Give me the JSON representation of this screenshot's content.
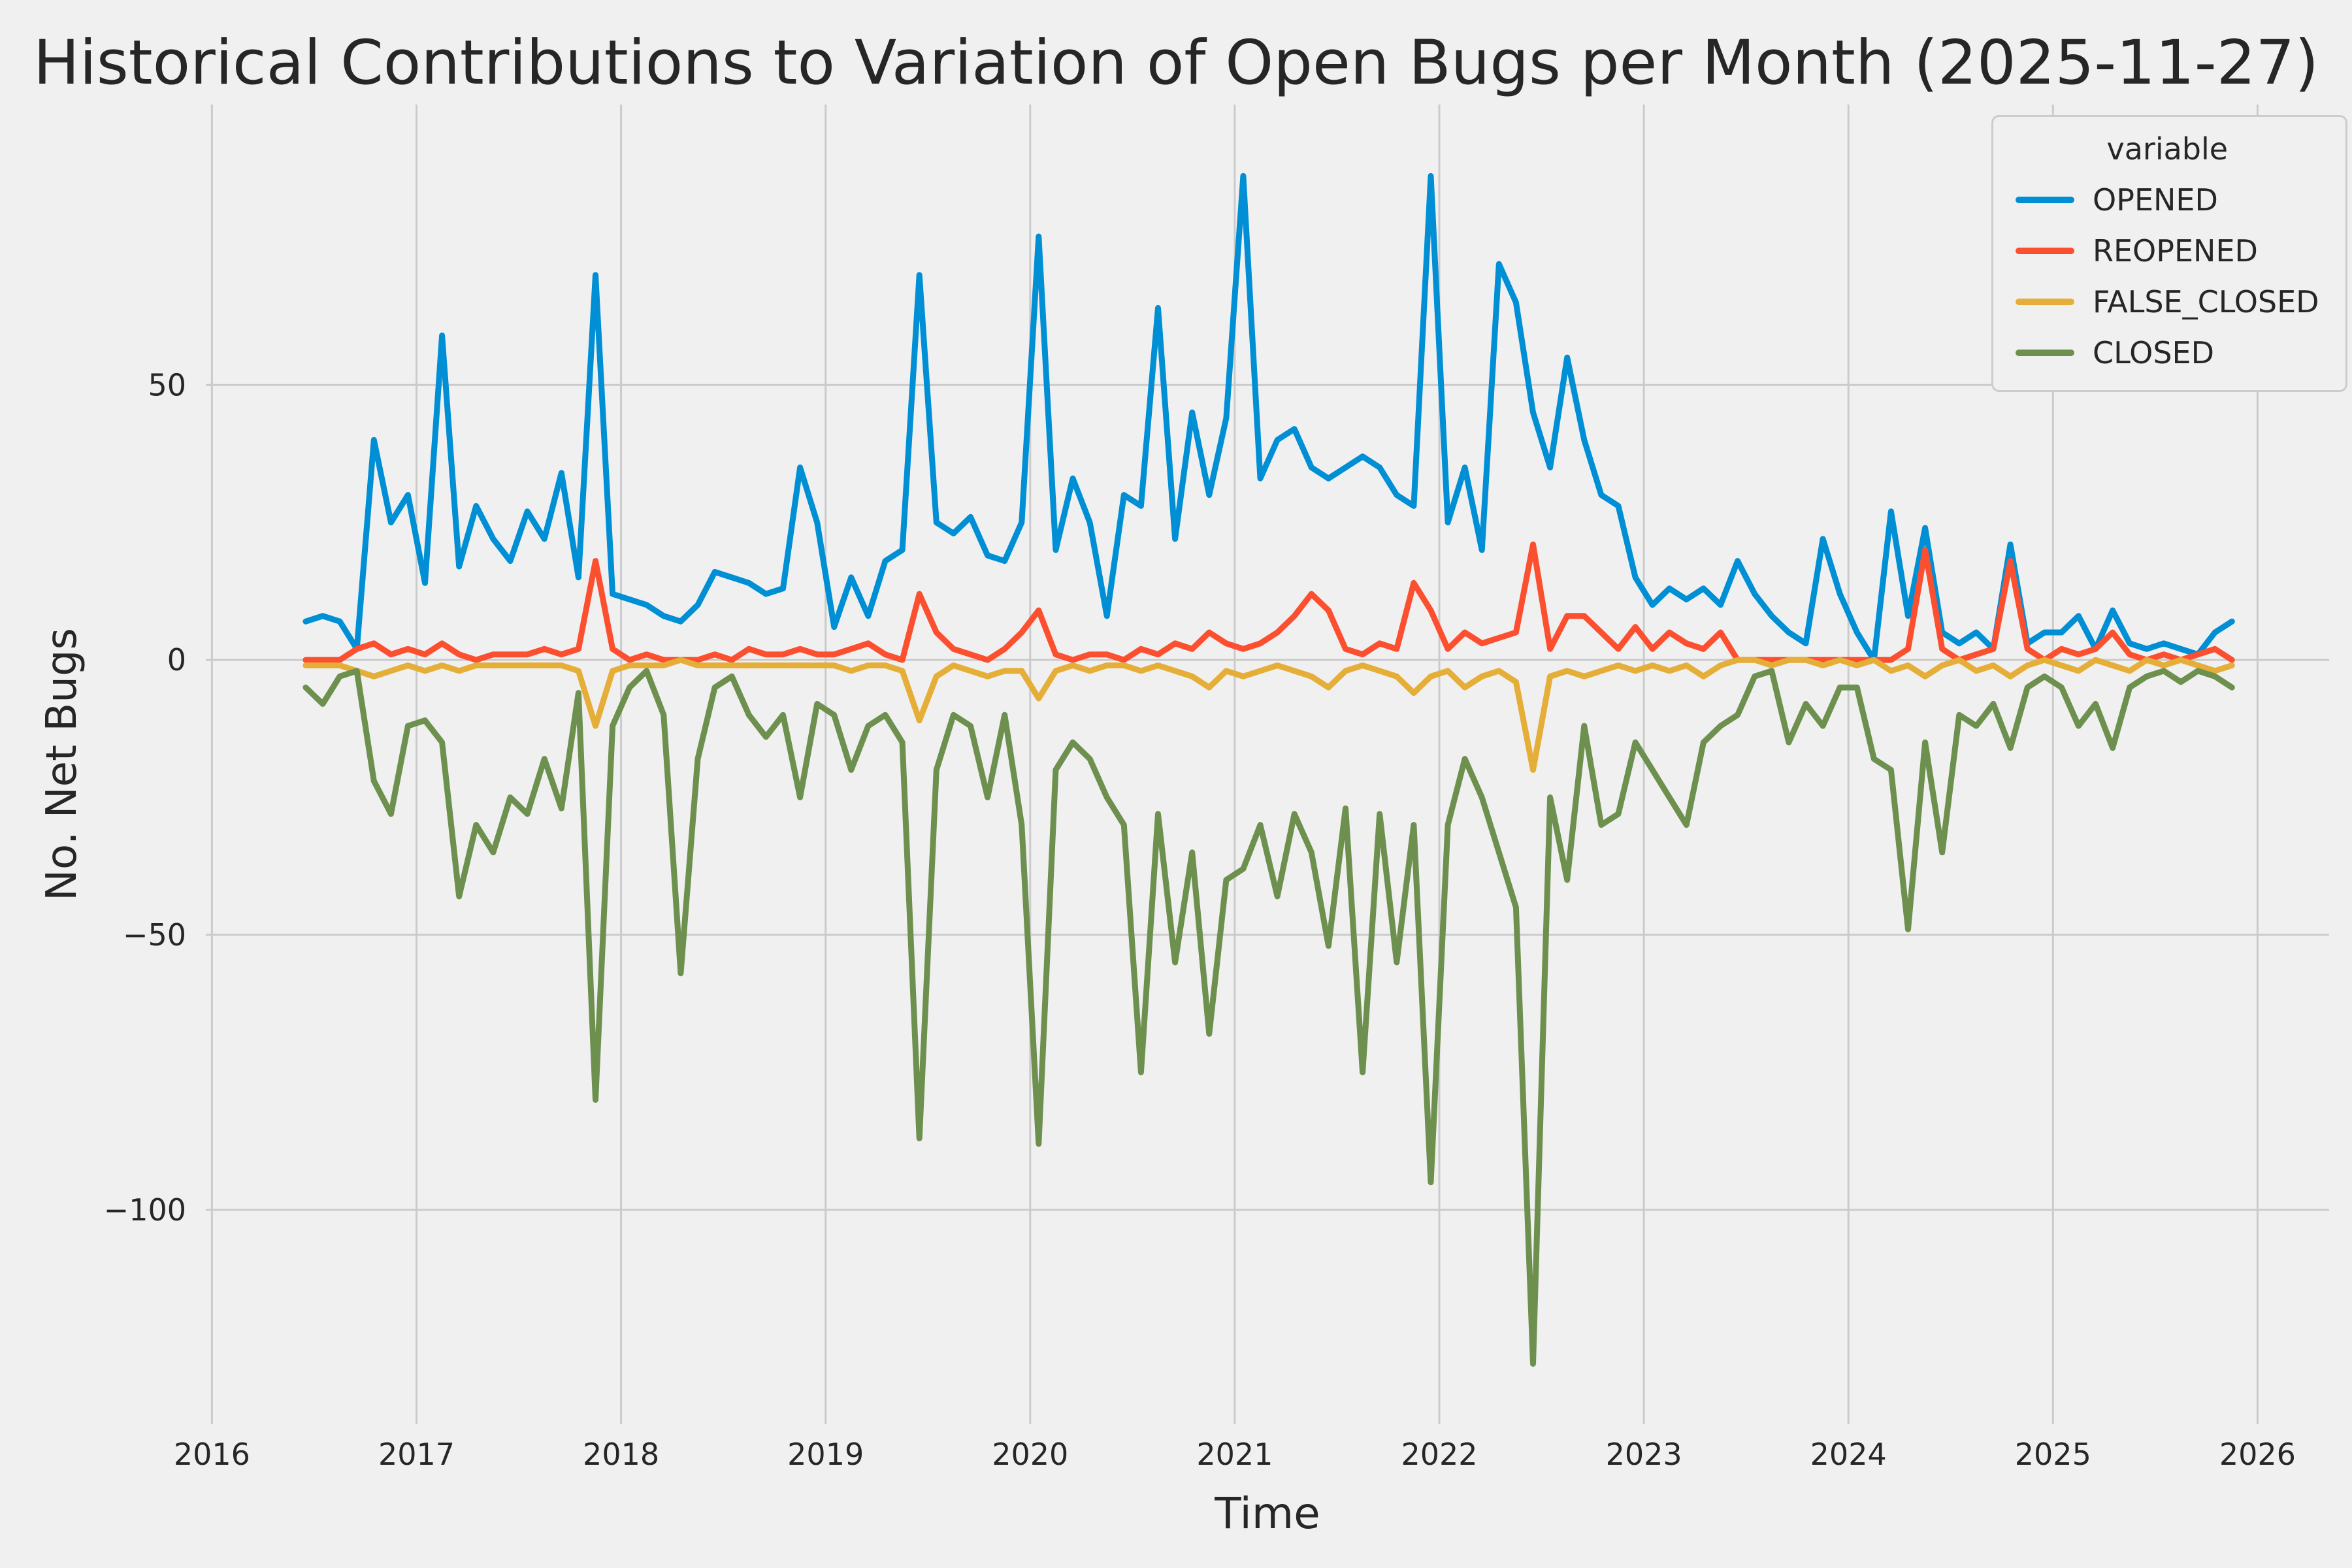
{
  "figure": {
    "background_color": "#f0f0f0",
    "grid_color": "#cbcbcb",
    "text_color": "#262626"
  },
  "chart_data": {
    "type": "line",
    "title": "Historical Contributions to Variation of Open Bugs per Month (2025-11-27)",
    "xlabel": "Time",
    "ylabel": "No. Net Bugs",
    "legend_title": "variable",
    "legend_position": "upper right",
    "grid": true,
    "xlim": [
      2015.97,
      2026.35
    ],
    "ylim": [
      -139,
      101
    ],
    "x_ticks": [
      2016,
      2017,
      2018,
      2019,
      2020,
      2021,
      2022,
      2023,
      2024,
      2025,
      2026
    ],
    "y_ticks": [
      50,
      0,
      -50,
      -100
    ],
    "x_months": [
      "2016-06",
      "2016-07",
      "2016-08",
      "2016-09",
      "2016-10",
      "2016-11",
      "2016-12",
      "2017-01",
      "2017-02",
      "2017-03",
      "2017-04",
      "2017-05",
      "2017-06",
      "2017-07",
      "2017-08",
      "2017-09",
      "2017-10",
      "2017-11",
      "2017-12",
      "2018-01",
      "2018-02",
      "2018-03",
      "2018-04",
      "2018-05",
      "2018-06",
      "2018-07",
      "2018-08",
      "2018-09",
      "2018-10",
      "2018-11",
      "2018-12",
      "2019-01",
      "2019-02",
      "2019-03",
      "2019-04",
      "2019-05",
      "2019-06",
      "2019-07",
      "2019-08",
      "2019-09",
      "2019-10",
      "2019-11",
      "2019-12",
      "2020-01",
      "2020-02",
      "2020-03",
      "2020-04",
      "2020-05",
      "2020-06",
      "2020-07",
      "2020-08",
      "2020-09",
      "2020-10",
      "2020-11",
      "2020-12",
      "2021-01",
      "2021-02",
      "2021-03",
      "2021-04",
      "2021-05",
      "2021-06",
      "2021-07",
      "2021-08",
      "2021-09",
      "2021-10",
      "2021-11",
      "2021-12",
      "2022-01",
      "2022-02",
      "2022-03",
      "2022-04",
      "2022-05",
      "2022-06",
      "2022-07",
      "2022-08",
      "2022-09",
      "2022-10",
      "2022-11",
      "2022-12",
      "2023-01",
      "2023-02",
      "2023-03",
      "2023-04",
      "2023-05",
      "2023-06",
      "2023-07",
      "2023-08",
      "2023-09",
      "2023-10",
      "2023-11",
      "2023-12",
      "2024-01",
      "2024-02",
      "2024-03",
      "2024-04",
      "2024-05",
      "2024-06",
      "2024-07",
      "2024-08",
      "2024-09",
      "2024-10",
      "2024-11",
      "2024-12",
      "2025-01",
      "2025-02",
      "2025-03",
      "2025-04",
      "2025-05",
      "2025-06",
      "2025-07",
      "2025-08",
      "2025-09",
      "2025-10",
      "2025-11"
    ],
    "series": [
      {
        "name": "OPENED",
        "color": "#008fd5",
        "values": [
          7,
          8,
          7,
          2,
          40,
          25,
          30,
          14,
          59,
          17,
          28,
          22,
          18,
          27,
          22,
          34,
          15,
          70,
          12,
          11,
          10,
          8,
          7,
          10,
          16,
          15,
          14,
          12,
          13,
          35,
          25,
          6,
          15,
          8,
          18,
          20,
          70,
          25,
          23,
          26,
          19,
          18,
          25,
          77,
          20,
          33,
          25,
          8,
          30,
          28,
          64,
          22,
          45,
          30,
          44,
          88,
          33,
          40,
          42,
          35,
          33,
          35,
          37,
          35,
          30,
          28,
          88,
          25,
          35,
          20,
          72,
          65,
          45,
          35,
          55,
          40,
          30,
          28,
          15,
          10,
          13,
          11,
          13,
          10,
          18,
          12,
          8,
          5,
          3,
          22,
          12,
          5,
          0,
          27,
          8,
          24,
          5,
          3,
          5,
          2,
          21,
          3,
          5,
          5,
          8,
          2,
          9,
          3,
          2,
          3,
          2,
          1,
          5,
          7
        ]
      },
      {
        "name": "REOPENED",
        "color": "#fc4f30",
        "values": [
          0,
          0,
          0,
          2,
          3,
          1,
          2,
          1,
          3,
          1,
          0,
          1,
          1,
          1,
          2,
          1,
          2,
          18,
          2,
          0,
          1,
          0,
          0,
          0,
          1,
          0,
          2,
          1,
          1,
          2,
          1,
          1,
          2,
          3,
          1,
          0,
          12,
          5,
          2,
          1,
          0,
          2,
          5,
          9,
          1,
          0,
          1,
          1,
          0,
          2,
          1,
          3,
          2,
          5,
          3,
          2,
          3,
          5,
          8,
          12,
          9,
          2,
          1,
          3,
          2,
          14,
          9,
          2,
          5,
          3,
          4,
          5,
          21,
          2,
          8,
          8,
          5,
          2,
          6,
          2,
          5,
          3,
          2,
          5,
          0,
          0,
          0,
          0,
          0,
          0,
          0,
          0,
          0,
          0,
          2,
          20,
          2,
          0,
          1,
          2,
          18,
          2,
          0,
          2,
          1,
          2,
          5,
          1,
          0,
          1,
          0,
          1,
          2,
          0
        ]
      },
      {
        "name": "FALSE_CLOSED",
        "color": "#e5ae38",
        "values": [
          -1,
          -1,
          -1,
          -2,
          -3,
          -2,
          -1,
          -2,
          -1,
          -2,
          -1,
          -1,
          -1,
          -1,
          -1,
          -1,
          -2,
          -12,
          -2,
          -1,
          -1,
          -1,
          0,
          -1,
          -1,
          -1,
          -1,
          -1,
          -1,
          -1,
          -1,
          -1,
          -2,
          -1,
          -1,
          -2,
          -11,
          -3,
          -1,
          -2,
          -3,
          -2,
          -2,
          -7,
          -2,
          -1,
          -2,
          -1,
          -1,
          -2,
          -1,
          -2,
          -3,
          -5,
          -2,
          -3,
          -2,
          -1,
          -2,
          -3,
          -5,
          -2,
          -1,
          -2,
          -3,
          -6,
          -3,
          -2,
          -5,
          -3,
          -2,
          -4,
          -20,
          -3,
          -2,
          -3,
          -2,
          -1,
          -2,
          -1,
          -2,
          -1,
          -3,
          -1,
          0,
          0,
          -1,
          0,
          0,
          -1,
          0,
          -1,
          0,
          -2,
          -1,
          -3,
          -1,
          0,
          -2,
          -1,
          -3,
          -1,
          0,
          -1,
          -2,
          0,
          -1,
          -2,
          0,
          -1,
          0,
          -1,
          -2,
          -1
        ]
      },
      {
        "name": "CLOSED",
        "color": "#6d904f",
        "values": [
          -5,
          -8,
          -3,
          -2,
          -22,
          -28,
          -12,
          -11,
          -15,
          -43,
          -30,
          -35,
          -25,
          -28,
          -18,
          -27,
          -6,
          -80,
          -12,
          -5,
          -2,
          -10,
          -57,
          -18,
          -5,
          -3,
          -10,
          -14,
          -10,
          -25,
          -8,
          -10,
          -20,
          -12,
          -10,
          -15,
          -87,
          -20,
          -10,
          -12,
          -25,
          -10,
          -30,
          -88,
          -20,
          -15,
          -18,
          -25,
          -30,
          -75,
          -28,
          -55,
          -35,
          -68,
          -40,
          -38,
          -30,
          -43,
          -28,
          -35,
          -52,
          -27,
          -75,
          -28,
          -55,
          -30,
          -95,
          -30,
          -18,
          -25,
          -35,
          -45,
          -128,
          -25,
          -40,
          -12,
          -30,
          -28,
          -15,
          -20,
          -25,
          -30,
          -15,
          -12,
          -10,
          -3,
          -2,
          -15,
          -8,
          -12,
          -5,
          -5,
          -18,
          -20,
          -49,
          -15,
          -35,
          -10,
          -12,
          -8,
          -16,
          -5,
          -3,
          -5,
          -12,
          -8,
          -16,
          -5,
          -3,
          -2,
          -4,
          -2,
          -3,
          -5
        ]
      }
    ]
  }
}
